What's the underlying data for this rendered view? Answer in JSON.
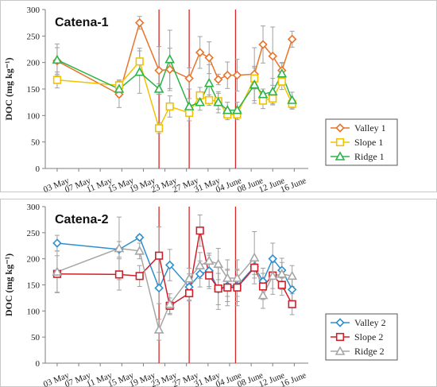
{
  "chart_data": [
    {
      "type": "line",
      "title": "Catena-1",
      "ylabel": "DOC (mg kg⁻¹)",
      "xlabel": "",
      "ylim": [
        0,
        300
      ],
      "yticks": [
        0,
        50,
        100,
        150,
        200,
        250,
        300
      ],
      "xticks": [
        {
          "day": 0,
          "label": "03 May"
        },
        {
          "day": 4,
          "label": "07 May"
        },
        {
          "day": 8,
          "label": "11 May"
        },
        {
          "day": 12,
          "label": "15 May"
        },
        {
          "day": 16,
          "label": "19 May"
        },
        {
          "day": 20,
          "label": "23 May"
        },
        {
          "day": 24,
          "label": "27 May"
        },
        {
          "day": 28,
          "label": "31 May"
        },
        {
          "day": 32,
          "label": "04 June"
        },
        {
          "day": 36,
          "label": "08 June"
        },
        {
          "day": 40,
          "label": "12 June"
        },
        {
          "day": 44,
          "label": "16 June"
        }
      ],
      "xlim": [
        -2.2,
        46.6
      ],
      "vlines": [
        18.9,
        24.5,
        33.1
      ],
      "x": [
        0,
        11.5,
        15.3,
        18.9,
        20.9,
        24.5,
        26.5,
        28.2,
        29.9,
        31.6,
        33.4,
        36.6,
        38.2,
        40.0,
        41.7,
        43.6
      ],
      "legend_position": "bottom-right",
      "series": [
        {
          "name": "Valley 1",
          "color": "#e8742a",
          "marker": "diamond",
          "values": [
            203,
            140,
            275,
            185,
            187,
            170,
            219,
            209,
            168,
            176,
            176,
            178,
            234,
            212,
            185,
            244
          ],
          "errors": [
            25,
            25,
            12,
            45,
            40,
            20,
            30,
            30,
            10,
            25,
            30,
            50,
            35,
            55,
            15,
            15
          ]
        },
        {
          "name": "Slope 1",
          "color": "#f2c200",
          "marker": "square",
          "values": [
            167,
            157,
            202,
            76,
            117,
            105,
            138,
            129,
            127,
            102,
            102,
            170,
            128,
            132,
            164,
            122
          ],
          "errors": [
            15,
            10,
            25,
            10,
            20,
            15,
            15,
            10,
            15,
            10,
            10,
            20,
            15,
            10,
            15,
            10
          ]
        },
        {
          "name": "Ridge 1",
          "color": "#2db34a",
          "marker": "triangle",
          "values": [
            205,
            150,
            182,
            150,
            206,
            117,
            125,
            161,
            125,
            110,
            110,
            158,
            140,
            145,
            179,
            129
          ],
          "errors": [
            30,
            15,
            40,
            10,
            55,
            15,
            15,
            35,
            20,
            15,
            15,
            35,
            10,
            25,
            20,
            15
          ]
        }
      ]
    },
    {
      "type": "line",
      "title": "Catena-2",
      "ylabel": "DOC (mg kg⁻¹)",
      "xlabel": "",
      "ylim": [
        0,
        300
      ],
      "yticks": [
        0,
        50,
        100,
        150,
        200,
        250,
        300
      ],
      "xticks": [
        {
          "day": 0,
          "label": "03 May"
        },
        {
          "day": 4,
          "label": "07 May"
        },
        {
          "day": 8,
          "label": "11 May"
        },
        {
          "day": 12,
          "label": "15 May"
        },
        {
          "day": 16,
          "label": "19 May"
        },
        {
          "day": 20,
          "label": "23 May"
        },
        {
          "day": 24,
          "label": "27 May"
        },
        {
          "day": 28,
          "label": "31 May"
        },
        {
          "day": 32,
          "label": "04 June"
        },
        {
          "day": 36,
          "label": "08 June"
        },
        {
          "day": 40,
          "label": "12 June"
        },
        {
          "day": 44,
          "label": "16 June"
        }
      ],
      "xlim": [
        -2.2,
        46.6
      ],
      "vlines": [
        18.9,
        24.5,
        33.1
      ],
      "x": [
        0,
        11.5,
        15.3,
        18.9,
        20.9,
        24.5,
        26.5,
        28.2,
        29.9,
        31.6,
        33.4,
        36.6,
        38.2,
        40.0,
        41.7,
        43.6
      ],
      "legend_position": "bottom-right",
      "series": [
        {
          "name": "Valley 2",
          "color": "#2e8fce",
          "marker": "diamond",
          "values": [
            230,
            218,
            241,
            144,
            188,
            146,
            171,
            177,
            142,
            148,
            148,
            185,
            157,
            200,
            178,
            141
          ],
          "errors": [
            15,
            15,
            5,
            30,
            30,
            25,
            25,
            30,
            30,
            30,
            30,
            15,
            25,
            30,
            15,
            25
          ]
        },
        {
          "name": "Slope 2",
          "color": "#d11f2a",
          "marker": "square",
          "values": [
            171,
            170,
            167,
            206,
            110,
            134,
            254,
            168,
            143,
            145,
            145,
            183,
            147,
            168,
            150,
            113
          ],
          "errors": [
            35,
            30,
            20,
            55,
            15,
            15,
            30,
            25,
            40,
            35,
            35,
            20,
            25,
            25,
            20,
            20
          ]
        },
        {
          "name": "Ridge 2",
          "color": "#a6a6a6",
          "marker": "triangle",
          "values": [
            175,
            220,
            215,
            64,
            113,
            162,
            187,
            196,
            190,
            163,
            163,
            202,
            130,
            167,
            171,
            167
          ],
          "errors": [
            40,
            60,
            15,
            20,
            20,
            20,
            25,
            15,
            30,
            35,
            35,
            50,
            25,
            35,
            30,
            20
          ]
        }
      ]
    }
  ]
}
